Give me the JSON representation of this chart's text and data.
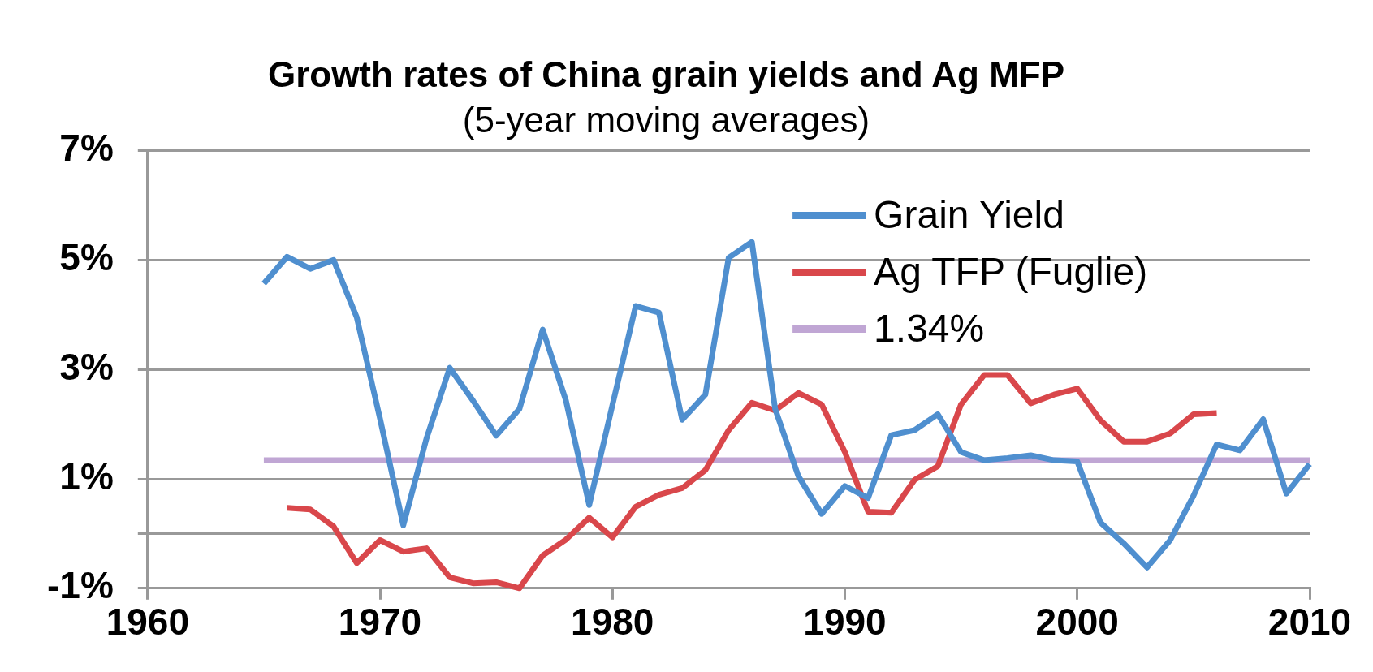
{
  "chart_data": {
    "type": "line",
    "title": "Growth rates of China grain yields and Ag MFP",
    "subtitle": "(5-year moving averages)",
    "xlim": [
      1960,
      2010
    ],
    "xticks": [
      1960,
      1970,
      1980,
      1990,
      2000,
      2010
    ],
    "ylim": [
      -1,
      7
    ],
    "yticks": [
      {
        "value": -1,
        "label": "-1%"
      },
      {
        "value": 0,
        "label": null
      },
      {
        "value": 1,
        "label": "1%"
      },
      {
        "value": 3,
        "label": "3%"
      },
      {
        "value": 5,
        "label": "5%"
      },
      {
        "value": 7,
        "label": "7%"
      }
    ],
    "grid": "y",
    "legend": "top right",
    "marker": "none",
    "line_style": "solid",
    "series": [
      {
        "name": "Grain Yield",
        "color": "#4f8fcf",
        "x": [
          1965,
          1966,
          1967,
          1968,
          1969,
          1970,
          1971,
          1972,
          1973,
          1974,
          1975,
          1976,
          1977,
          1978,
          1979,
          1980,
          1981,
          1982,
          1983,
          1984,
          1985,
          1986,
          1987,
          1988,
          1989,
          1990,
          1991,
          1992,
          1993,
          1994,
          1995,
          1996,
          1997,
          1998,
          1999,
          2000,
          2001,
          2002,
          2003,
          2004,
          2005,
          2006,
          2007,
          2008,
          2009,
          2010
        ],
        "values": [
          4.57,
          5.06,
          4.84,
          5.0,
          3.95,
          2.1,
          0.15,
          1.74,
          3.03,
          2.43,
          1.79,
          2.28,
          3.73,
          2.43,
          0.52,
          2.35,
          4.16,
          4.04,
          2.08,
          2.54,
          5.04,
          5.33,
          2.28,
          1.05,
          0.36,
          0.87,
          0.65,
          1.8,
          1.89,
          2.18,
          1.49,
          1.34,
          1.38,
          1.43,
          1.34,
          1.32,
          0.2,
          -0.18,
          -0.62,
          -0.12,
          0.69,
          1.63,
          1.52,
          2.09,
          0.73,
          1.27
        ]
      },
      {
        "name": "Ag TFP (Fuglie)",
        "color": "#d9474b",
        "x": [
          1966,
          1967,
          1968,
          1969,
          1970,
          1971,
          1972,
          1973,
          1974,
          1975,
          1976,
          1977,
          1978,
          1979,
          1980,
          1981,
          1982,
          1983,
          1984,
          1985,
          1986,
          1987,
          1988,
          1989,
          1990,
          1991,
          1992,
          1993,
          1994,
          1995,
          1996,
          1997,
          1998,
          1999,
          2000,
          2001,
          2002,
          2003,
          2004,
          2005,
          2006
        ],
        "values": [
          0.47,
          0.44,
          0.13,
          -0.54,
          -0.12,
          -0.33,
          -0.27,
          -0.8,
          -0.91,
          -0.89,
          -1.0,
          -0.4,
          -0.11,
          0.29,
          -0.07,
          0.49,
          0.71,
          0.83,
          1.16,
          1.89,
          2.39,
          2.25,
          2.57,
          2.36,
          1.49,
          0.4,
          0.38,
          0.98,
          1.23,
          2.36,
          2.9,
          2.9,
          2.38,
          2.54,
          2.65,
          2.07,
          1.68,
          1.68,
          1.83,
          2.18,
          2.2
        ]
      },
      {
        "name": "1.34%",
        "color": "#c0a6d4",
        "x": [
          1965,
          2010
        ],
        "values": [
          1.34,
          1.34
        ]
      }
    ]
  }
}
